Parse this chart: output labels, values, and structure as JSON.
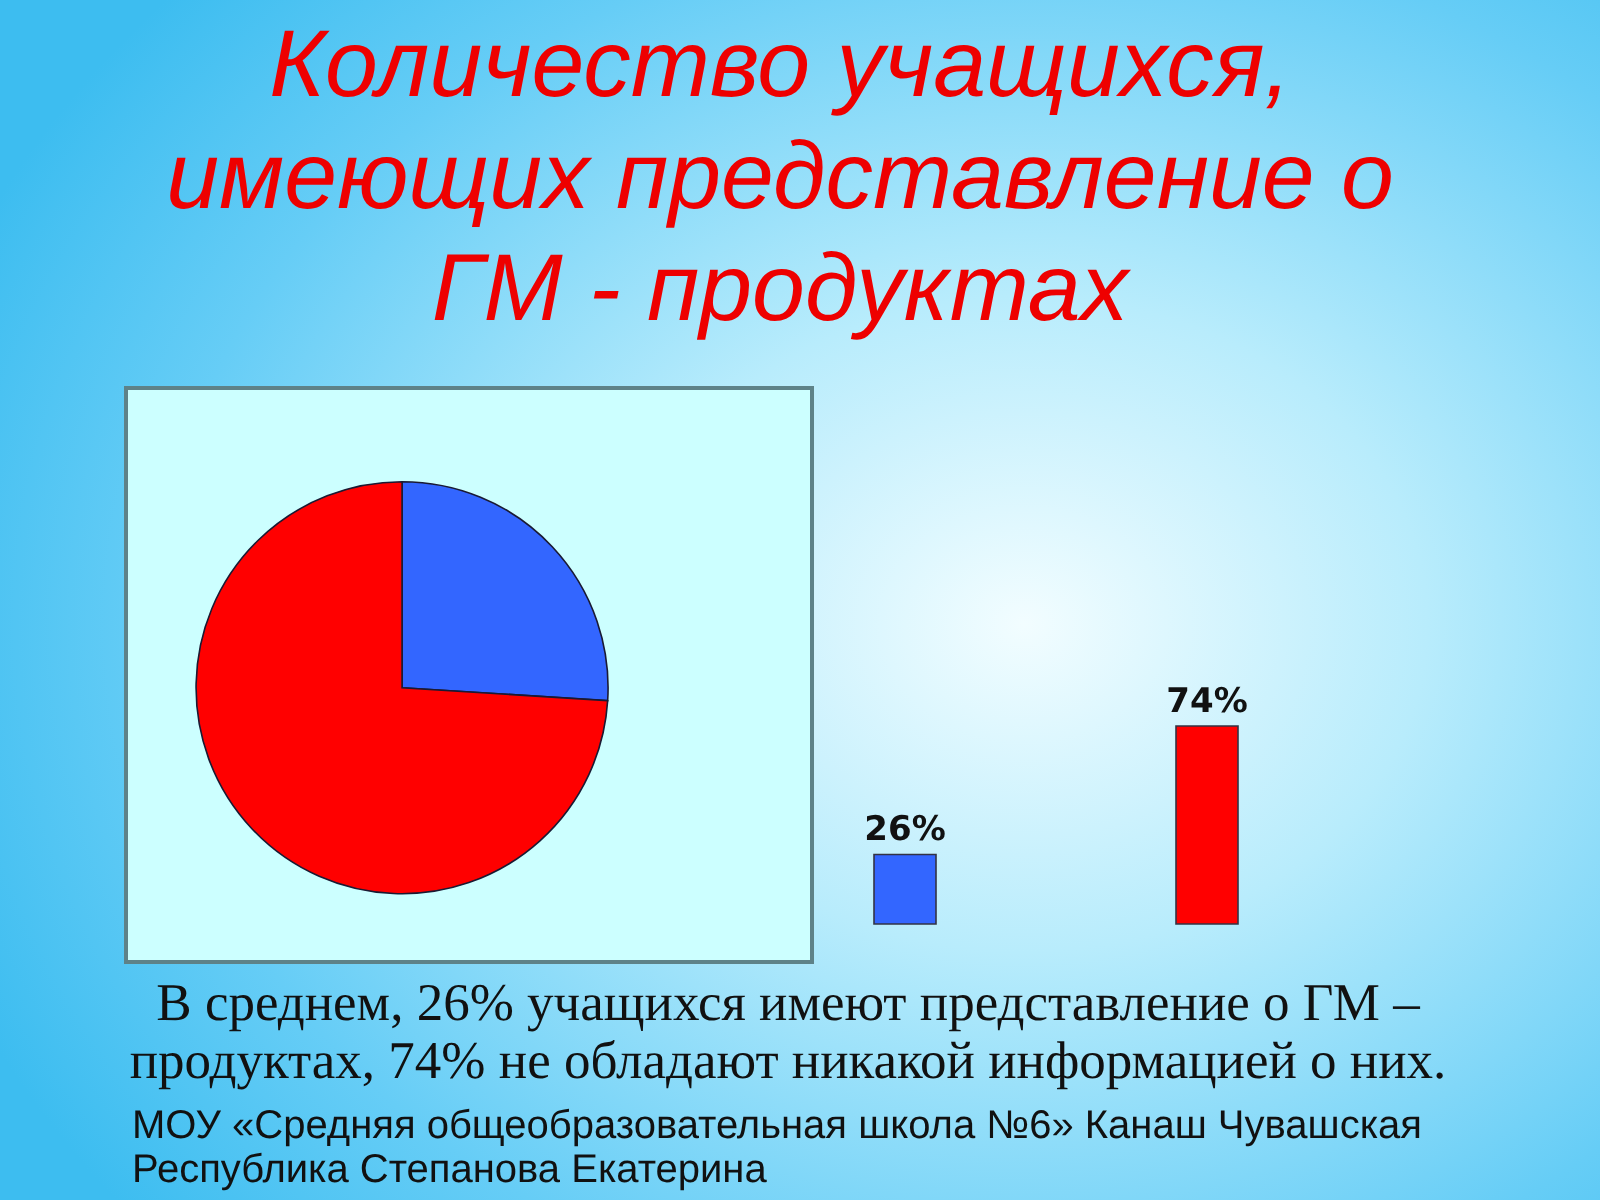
{
  "chart_data": [
    {
      "type": "pie",
      "title": "Количество учащихся, имеющих представление о ГМ - продуктах",
      "categories": [
        null,
        null
      ],
      "values": [
        26,
        74
      ],
      "colors": [
        "#3366ff",
        "#ff0000"
      ],
      "annotations": [
        "В среднем, 26% учащихся имеют представление о ГМ – продуктах, 74% не обладают никакой информацией о них.",
        "МОУ «Средняя общеобразовательная школа №6» Канаш Чувашская Республика Степанова Екатерина"
      ]
    },
    {
      "type": "bar",
      "categories": [
        null,
        null
      ],
      "values": [
        26,
        74
      ],
      "colors": [
        "#3366ff",
        "#ff0000"
      ],
      "value_labels": [
        "26%",
        "74%"
      ]
    }
  ]
}
